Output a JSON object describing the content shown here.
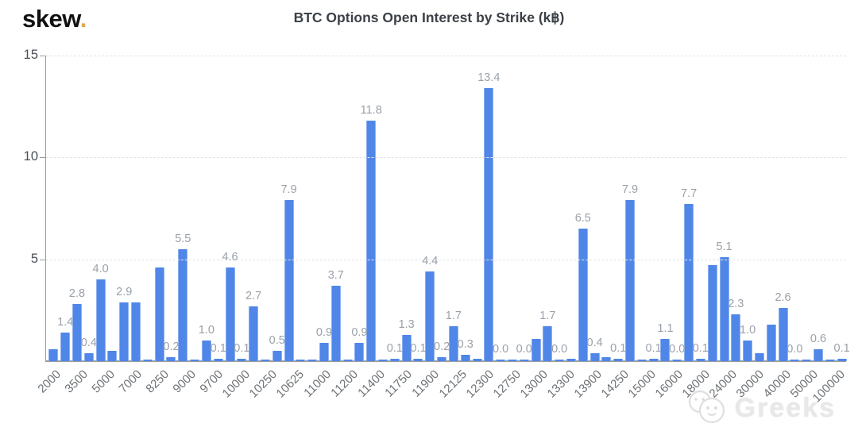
{
  "header": {
    "logo_text": "skew",
    "logo_dot": ".",
    "title": "BTC Options Open Interest by Strike (k฿)"
  },
  "watermark": {
    "icon": "wechat-smiley-icon",
    "text": "Greeks"
  },
  "chart_data": {
    "type": "bar",
    "title": "BTC Options Open Interest by Strike (k฿)",
    "unit": "k฿ (thousands of BTC)",
    "ylim": [
      0,
      15
    ],
    "yticks": [
      "15",
      "10",
      "5"
    ],
    "grid": "dashed-horizontal",
    "legend": "none",
    "bar_color": "#4f86e8",
    "value_label_color": "#9aa1a9",
    "x_tick_labels": [
      "2000",
      "3500",
      "5000",
      "7000",
      "8250",
      "9000",
      "9700",
      "10000",
      "10250",
      "10625",
      "11000",
      "11200",
      "11400",
      "11750",
      "11900",
      "12125",
      "12300",
      "12750",
      "13000",
      "13300",
      "13900",
      "14250",
      "15000",
      "16000",
      "18000",
      "24000",
      "30000",
      "40000",
      "50000",
      "100000"
    ],
    "bars": [
      {
        "v": 0.6,
        "l": ""
      },
      {
        "v": 1.4,
        "l": "1.4"
      },
      {
        "v": 2.8,
        "l": "2.8"
      },
      {
        "v": 0.4,
        "l": "0.4"
      },
      {
        "v": 4.0,
        "l": "4.0"
      },
      {
        "v": 0.5,
        "l": ""
      },
      {
        "v": 2.9,
        "l": "2.9"
      },
      {
        "v": 2.9,
        "l": ""
      },
      {
        "v": 0.05,
        "l": ""
      },
      {
        "v": 4.6,
        "l": ""
      },
      {
        "v": 0.2,
        "l": "0.2"
      },
      {
        "v": 5.5,
        "l": "5.5"
      },
      {
        "v": 0.05,
        "l": ""
      },
      {
        "v": 1.0,
        "l": "1.0"
      },
      {
        "v": 0.1,
        "l": "0.1"
      },
      {
        "v": 4.6,
        "l": "4.6"
      },
      {
        "v": 0.1,
        "l": "0.1"
      },
      {
        "v": 2.7,
        "l": "2.7"
      },
      {
        "v": 0.05,
        "l": ""
      },
      {
        "v": 0.5,
        "l": "0.5"
      },
      {
        "v": 7.9,
        "l": "7.9"
      },
      {
        "v": 0.05,
        "l": ""
      },
      {
        "v": 0.05,
        "l": ""
      },
      {
        "v": 0.9,
        "l": "0.9"
      },
      {
        "v": 3.7,
        "l": "3.7"
      },
      {
        "v": 0.05,
        "l": ""
      },
      {
        "v": 0.9,
        "l": "0.9"
      },
      {
        "v": 11.8,
        "l": "11.8"
      },
      {
        "v": 0.05,
        "l": ""
      },
      {
        "v": 0.1,
        "l": "0.1"
      },
      {
        "v": 1.3,
        "l": "1.3"
      },
      {
        "v": 0.1,
        "l": "0.1"
      },
      {
        "v": 4.4,
        "l": "4.4"
      },
      {
        "v": 0.2,
        "l": "0.2"
      },
      {
        "v": 1.7,
        "l": "1.7"
      },
      {
        "v": 0.3,
        "l": "0.3"
      },
      {
        "v": 0.1,
        "l": ""
      },
      {
        "v": 13.4,
        "l": "13.4"
      },
      {
        "v": 0.05,
        "l": "0.0"
      },
      {
        "v": 0.05,
        "l": ""
      },
      {
        "v": 0.05,
        "l": "0.0"
      },
      {
        "v": 1.1,
        "l": ""
      },
      {
        "v": 1.7,
        "l": "1.7"
      },
      {
        "v": 0.05,
        "l": "0.0"
      },
      {
        "v": 0.1,
        "l": ""
      },
      {
        "v": 6.5,
        "l": "6.5"
      },
      {
        "v": 0.4,
        "l": "0.4"
      },
      {
        "v": 0.2,
        "l": ""
      },
      {
        "v": 0.1,
        "l": "0.1"
      },
      {
        "v": 7.9,
        "l": "7.9"
      },
      {
        "v": 0.05,
        "l": ""
      },
      {
        "v": 0.1,
        "l": "0.1"
      },
      {
        "v": 1.1,
        "l": "1.1"
      },
      {
        "v": 0.05,
        "l": "0.0"
      },
      {
        "v": 7.7,
        "l": "7.7"
      },
      {
        "v": 0.1,
        "l": "0.1"
      },
      {
        "v": 4.7,
        "l": ""
      },
      {
        "v": 5.1,
        "l": "5.1"
      },
      {
        "v": 2.3,
        "l": "2.3"
      },
      {
        "v": 1.0,
        "l": "1.0"
      },
      {
        "v": 0.4,
        "l": ""
      },
      {
        "v": 1.8,
        "l": ""
      },
      {
        "v": 2.6,
        "l": "2.6"
      },
      {
        "v": 0.05,
        "l": "0.0"
      },
      {
        "v": 0.05,
        "l": ""
      },
      {
        "v": 0.6,
        "l": "0.6"
      },
      {
        "v": 0.05,
        "l": ""
      },
      {
        "v": 0.1,
        "l": "0.1"
      }
    ]
  }
}
